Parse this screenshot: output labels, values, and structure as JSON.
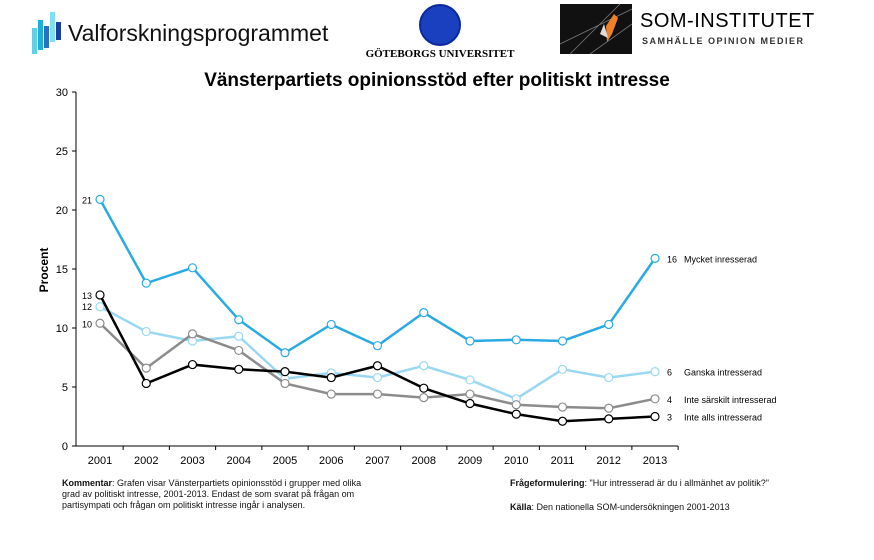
{
  "logos": {
    "left": "Valforskningsprogrammet",
    "center": "GÖTEBORGS UNIVERSITET",
    "right_title": "SOM-INSTITUTET",
    "right_subtitle": "SAMHÄLLE OPINION MEDIER"
  },
  "chart_data": {
    "type": "line",
    "title": "Vänsterpartiets opinionsstöd efter politiskt intresse",
    "xlabel": "",
    "ylabel": "Procent",
    "ylim": [
      0,
      30
    ],
    "yticks": [
      0,
      5,
      10,
      15,
      20,
      25,
      30
    ],
    "categories": [
      "2001",
      "2002",
      "2003",
      "2004",
      "2005",
      "2006",
      "2007",
      "2008",
      "2009",
      "2010",
      "2011",
      "2012",
      "2013"
    ],
    "grid": false,
    "series": [
      {
        "name": "Mycket inresserad",
        "color": "#29abe2",
        "values": [
          20.9,
          13.8,
          15.1,
          10.7,
          7.9,
          10.3,
          8.5,
          11.3,
          8.9,
          9.0,
          8.9,
          10.3,
          15.9
        ],
        "start_label": "21",
        "end_label": "16"
      },
      {
        "name": "Ganska intresserad",
        "color": "#9ad8f2",
        "values": [
          11.8,
          9.7,
          8.9,
          9.3,
          5.7,
          6.2,
          5.8,
          6.8,
          5.6,
          4.0,
          6.5,
          5.8,
          6.3
        ],
        "start_label": "12",
        "end_label": "6"
      },
      {
        "name": "Inte särskilt intresserad",
        "color": "#8c8c8c",
        "values": [
          10.4,
          6.6,
          9.5,
          8.1,
          5.3,
          4.4,
          4.4,
          4.1,
          4.4,
          3.5,
          3.3,
          3.2,
          4.0
        ],
        "start_label": "10",
        "end_label": "4"
      },
      {
        "name": "Inte alls intresserad",
        "color": "#000000",
        "values": [
          12.8,
          5.3,
          6.9,
          6.5,
          6.3,
          5.8,
          6.8,
          4.9,
          3.6,
          2.7,
          2.1,
          2.3,
          2.5
        ],
        "start_label": "13",
        "end_label": "3"
      }
    ]
  },
  "footer": {
    "comment_label": "Kommentar",
    "comment_text": ": Grafen visar Vänsterpartiets opinionsstöd i grupper med olika grad av politiskt intresse, 2001-2013. Endast de som svarat på frågan om partisympati och frågan om politiskt intresse ingår i analysen.",
    "question_label": "Frågeformulering",
    "question_text": ": \"Hur intresserad är du i allmänhet av politik?\"",
    "source_label": "Källa",
    "source_text": ": Den nationella SOM-undersökningen 2001-2013"
  }
}
